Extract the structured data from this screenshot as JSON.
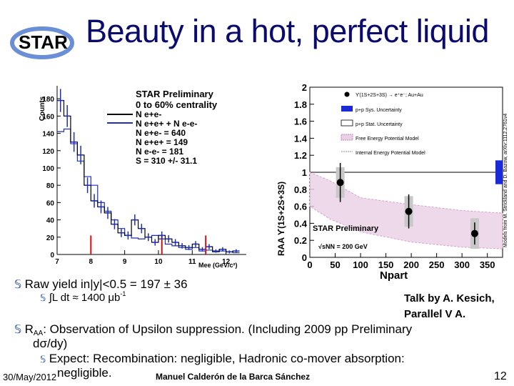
{
  "slide": {
    "title": "Beauty in a hot, perfect liquid",
    "logo_text": "STAR",
    "date": "30/May/2012",
    "author": "Manuel Calderón de la Barca Sánchez",
    "page_number": "12"
  },
  "left_plot": {
    "ylabel": "Counts",
    "xlabel": "Mee (GeV/c²)",
    "x_ticks": [
      "7",
      "8",
      "9",
      "10",
      "11",
      "12"
    ],
    "y_ticks": [
      "0",
      "20",
      "40",
      "60",
      "80",
      "100",
      "120",
      "140",
      "160",
      "180"
    ],
    "legend": {
      "line1": "STAR Preliminary",
      "line2": "0 to 60% centrality",
      "entry_black": "N e+e-",
      "entry_blue": "N e+e+ + N e-e-",
      "stats": [
        "N e+e- = 640",
        "N e+e+ = 149",
        "N e-e- = 181",
        "S = 310 +/- 31.1"
      ]
    },
    "colors": {
      "signal": "#000000",
      "background": "#1f2fb0",
      "upsilon_lines": "#d01010"
    }
  },
  "right_plot": {
    "ylabel": "RAA ϒ(1S+2S+3S)",
    "xlabel": "Npart",
    "x_ticks": [
      "0",
      "50",
      "100",
      "150",
      "200",
      "250",
      "300",
      "350"
    ],
    "y_ticks": [
      "0",
      "0.2",
      "0.4",
      "0.6",
      "0.8",
      "1",
      "1.2",
      "1.4",
      "1.6",
      "1.8",
      "2"
    ],
    "legend": [
      "ϒ(1S+2S+3S) → e⁺e⁻; Au+Au",
      "p+p Sys. Uncertainty",
      "p+p Stat. Uncertainty",
      "Free Energy Potential Model",
      "Internal Energy Potential Model"
    ],
    "label_prelim": "STAR Preliminary",
    "label_energy": "√sNN = 200 GeV",
    "side_note": "Models from M. Strickland and D. Bazow, arXiv:1112.2761v4",
    "colors": {
      "data": "#000000",
      "sys_band": "#c8c8c8",
      "pp_sys": "#1a2ad8",
      "model_hatch": "#d8a0d0"
    }
  },
  "chart_data": [
    {
      "type": "scatter",
      "title": "STAR Preliminary",
      "xlabel": "Mee (GeV/c²)",
      "ylabel": "Counts",
      "xlim": [
        7,
        12.6
      ],
      "ylim": [
        0,
        195
      ],
      "series": [
        {
          "name": "N e+e-",
          "x": [
            7.1,
            7.3,
            7.5,
            7.7,
            7.9,
            8.1,
            8.3,
            8.5,
            8.7,
            8.9,
            9.1,
            9.3,
            9.5,
            9.7,
            9.9,
            10.1,
            10.3,
            10.5,
            10.7,
            10.9,
            11.1,
            11.3,
            11.5,
            11.7,
            11.9,
            12.1,
            12.3
          ],
          "values": [
            178,
            160,
            130,
            115,
            80,
            62,
            55,
            48,
            35,
            25,
            22,
            40,
            30,
            20,
            14,
            22,
            18,
            14,
            10,
            8,
            12,
            6,
            9,
            4,
            6,
            3,
            4
          ]
        },
        {
          "name": "N e+e+ + N e-e-",
          "x": [
            7.1,
            7.3,
            7.5,
            7.7,
            7.9,
            8.1,
            8.3,
            8.5,
            8.7,
            8.9,
            9.1,
            9.3,
            9.5,
            9.7,
            9.9,
            10.1,
            10.3,
            10.5,
            10.7,
            10.9,
            11.1,
            11.3,
            11.5,
            11.7,
            11.9,
            12.1,
            12.3
          ],
          "values": [
            142,
            145,
            128,
            108,
            90,
            80,
            60,
            50,
            40,
            30,
            22,
            19,
            18,
            20,
            22,
            18,
            12,
            10,
            8,
            6,
            8,
            4,
            5,
            3,
            4,
            3,
            2
          ]
        }
      ]
    },
    {
      "type": "scatter",
      "title": "STAR Preliminary",
      "xlabel": "Npart",
      "ylabel": "RAA ϒ(1S+2S+3S)",
      "xlim": [
        0,
        380
      ],
      "ylim": [
        0,
        2
      ],
      "series": [
        {
          "name": "ϒ(1S+2S+3S) → e⁺e⁻; Au+Au",
          "x": [
            60,
            195,
            325
          ],
          "values": [
            0.88,
            0.54,
            0.28
          ],
          "err": [
            0.23,
            0.2,
            0.13
          ]
        }
      ]
    }
  ],
  "bullets": {
    "raw_yield": "Raw yield in|y|<0.5 = 197 ± 36",
    "lumi": "∫L dt ≈ 1400 μb",
    "lumi_sup": "-1",
    "raa_prefix": "R",
    "raa_sub": "AA",
    "raa_text": ": Observation of Upsilon suppression. (Including 2009 pp Preliminary",
    "raa_text2": "dσ/dy)",
    "expect": "Expect: Recombination: negligible, Hadronic co-mover absorption:",
    "expect2": "negligible."
  },
  "talk_note": {
    "line1": "Talk by A. Kesich,",
    "line2": "Parallel V A."
  }
}
